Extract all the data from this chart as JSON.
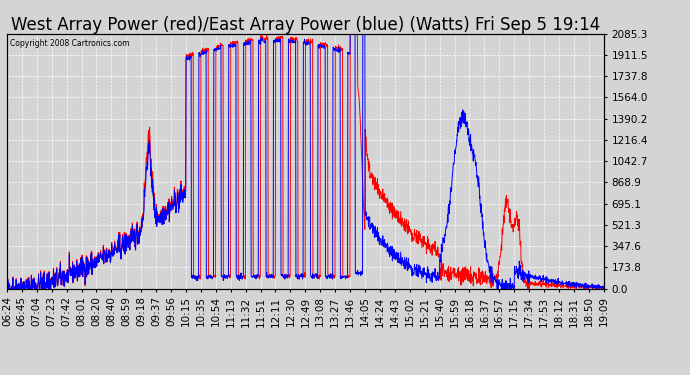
{
  "title": "West Array Power (red)/East Array Power (blue) (Watts) Fri Sep 5 19:14",
  "copyright": "Copyright 2008 Cartronics.com",
  "background_color": "#d4d4d4",
  "plot_bg_color": "#d4d4d4",
  "grid_color": "#ffffff",
  "yticks": [
    0.0,
    173.8,
    347.6,
    521.3,
    695.1,
    868.9,
    1042.7,
    1216.4,
    1390.2,
    1564.0,
    1737.8,
    1911.5,
    2085.3
  ],
  "ymax": 2085.3,
  "ymin": 0.0,
  "xtick_labels": [
    "06:24",
    "06:45",
    "07:04",
    "07:23",
    "07:42",
    "08:01",
    "08:20",
    "08:40",
    "08:59",
    "09:18",
    "09:37",
    "09:56",
    "10:15",
    "10:35",
    "10:54",
    "11:13",
    "11:32",
    "11:51",
    "12:11",
    "12:30",
    "12:49",
    "13:08",
    "13:27",
    "13:46",
    "14:05",
    "14:24",
    "14:43",
    "15:02",
    "15:21",
    "15:40",
    "15:59",
    "16:18",
    "16:37",
    "16:57",
    "17:15",
    "17:34",
    "17:53",
    "18:12",
    "18:31",
    "18:50",
    "19:09"
  ],
  "red_line_color": "#ff0000",
  "blue_line_color": "#0000ff",
  "line_width": 0.7,
  "title_fontsize": 12,
  "tick_fontsize": 7.5
}
